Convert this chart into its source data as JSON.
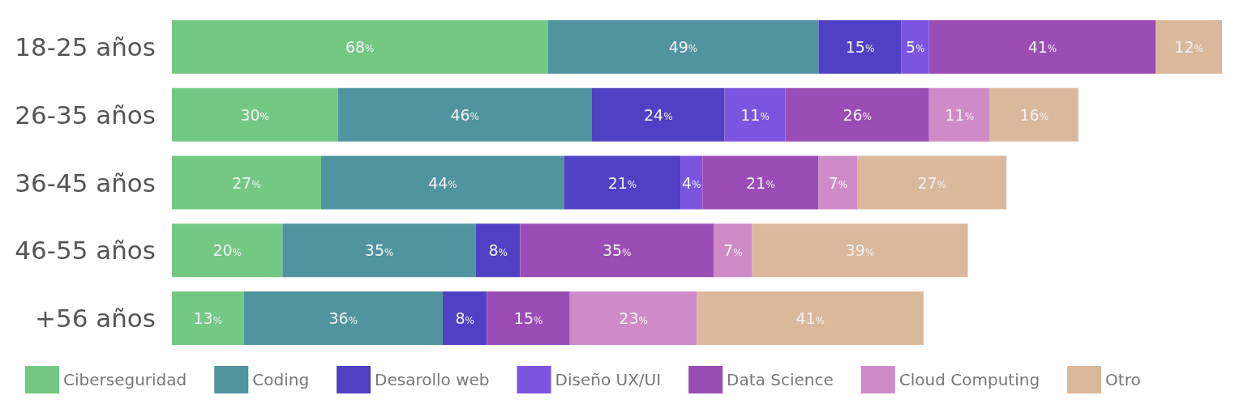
{
  "chart_data": {
    "type": "bar",
    "orientation": "horizontal",
    "stacked": true,
    "legend": "bottom",
    "tick_labels": "y",
    "categories": [
      "18-25 años",
      "26-35 años",
      "36-45 años",
      "46-55 años",
      "+56 años"
    ],
    "series": [
      {
        "name": "Ciberseguridad",
        "color": "#73c884",
        "values": [
          68,
          30,
          27,
          20,
          13
        ],
        "value_labels": [
          "68%",
          "30%",
          "27%",
          "20%",
          "13%"
        ]
      },
      {
        "name": "Coding",
        "color": "#4f949e",
        "values": [
          49,
          46,
          44,
          35,
          36
        ],
        "value_labels": [
          "49%",
          "46%",
          "44%",
          "35%",
          "36%"
        ]
      },
      {
        "name": "Desarollo web",
        "color": "#5040c3",
        "values": [
          15,
          24,
          21,
          8,
          8
        ],
        "value_labels": [
          "15%",
          "24%",
          "21%",
          "8%",
          "8%"
        ]
      },
      {
        "name": "Diseño UX/UI",
        "color": "#7b55e0",
        "values": [
          5,
          11,
          4,
          null,
          null
        ],
        "value_labels": [
          "5%",
          "11%",
          "4%",
          null,
          null
        ]
      },
      {
        "name": "Data Science",
        "color": "#9a4db5",
        "values": [
          41,
          26,
          21,
          35,
          15
        ],
        "value_labels": [
          "41%",
          "26%",
          "21%",
          "35%",
          "15%"
        ]
      },
      {
        "name": "Cloud Computing",
        "color": "#cf8ac8",
        "values": [
          null,
          11,
          7,
          7,
          23
        ],
        "value_labels": [
          null,
          "11%",
          "7%",
          "7%",
          "23%"
        ]
      },
      {
        "name": "Otro",
        "color": "#dab89c",
        "values": [
          12,
          16,
          27,
          39,
          41
        ],
        "value_labels": [
          "12%",
          "16%",
          "27%",
          "39%",
          "41%"
        ]
      }
    ]
  }
}
